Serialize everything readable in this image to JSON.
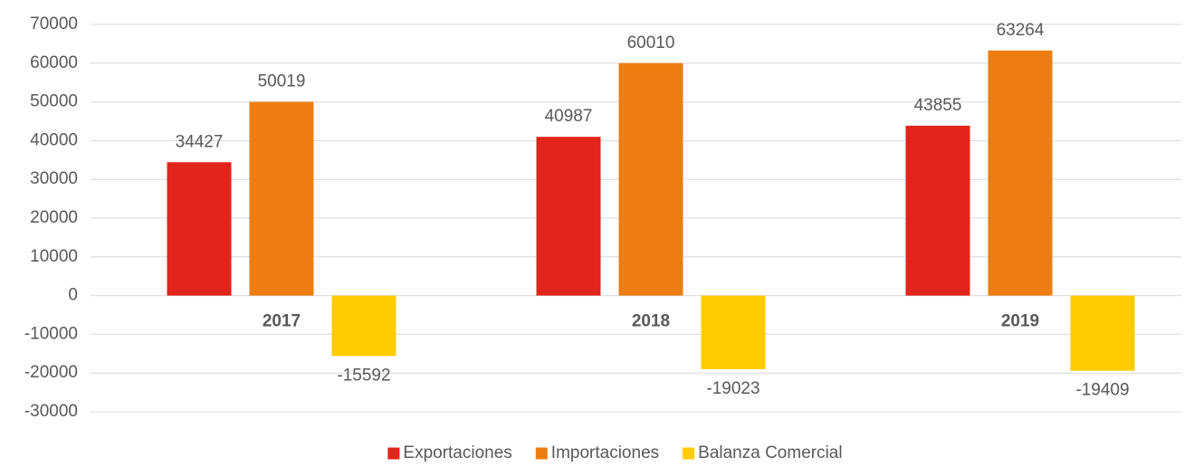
{
  "chart_data": {
    "type": "bar",
    "categories": [
      "2017",
      "2018",
      "2019"
    ],
    "series": [
      {
        "name": "Exportaciones",
        "color": "#e2251b",
        "values": [
          34427,
          40987,
          43855
        ]
      },
      {
        "name": "Importaciones",
        "color": "#ee7d11",
        "values": [
          50019,
          60010,
          63264
        ]
      },
      {
        "name": "Balanza Comercial",
        "color": "#ffcc00",
        "values": [
          -15592,
          -19023,
          -19409
        ]
      }
    ],
    "ylim": [
      -30000,
      70000
    ],
    "yticks": [
      -30000,
      -20000,
      -10000,
      0,
      10000,
      20000,
      30000,
      40000,
      50000,
      60000,
      70000
    ],
    "grid": true,
    "legend": "bottom"
  }
}
